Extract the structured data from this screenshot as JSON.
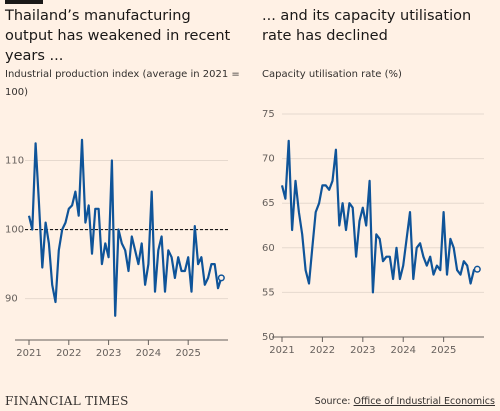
{
  "chart_data": [
    {
      "type": "line",
      "title": "Thailand’s manufacturing output has weakened in recent years ...",
      "subtitle": "Industrial production index (average in 2021 = 100)",
      "x": [
        2021,
        2021.083,
        2021.167,
        2021.25,
        2021.333,
        2021.417,
        2021.5,
        2021.583,
        2021.667,
        2021.75,
        2021.833,
        2021.917,
        2022,
        2022.083,
        2022.167,
        2022.25,
        2022.333,
        2022.417,
        2022.5,
        2022.583,
        2022.667,
        2022.75,
        2022.833,
        2022.917,
        2023,
        2023.083,
        2023.167,
        2023.25,
        2023.333,
        2023.417,
        2023.5,
        2023.583,
        2023.667,
        2023.75,
        2023.833,
        2023.917,
        2024,
        2024.083,
        2024.167,
        2024.25,
        2024.333,
        2024.417,
        2024.5,
        2024.583,
        2024.667,
        2024.75,
        2024.833,
        2024.917,
        2025,
        2025.083,
        2025.167,
        2025.25,
        2025.333,
        2025.417,
        2025.5,
        2025.583,
        2025.667,
        2025.75,
        2025.833
      ],
      "values": [
        102,
        100,
        112.5,
        104,
        94.5,
        101,
        98,
        92,
        89.5,
        97,
        100,
        101,
        103,
        103.5,
        105.5,
        102,
        113,
        101,
        103.5,
        96.5,
        103,
        103,
        95,
        98,
        96,
        110,
        87.5,
        100,
        98,
        97,
        94,
        99,
        97,
        95,
        98,
        92,
        95,
        105.5,
        91,
        97,
        99,
        91,
        97,
        96,
        93,
        96,
        94,
        94,
        96,
        91,
        100.5,
        95,
        96,
        92,
        93,
        95,
        95,
        91.5,
        93
      ],
      "color": "#0f5499",
      "xlim": [
        2021,
        2025.9
      ],
      "xticks": [
        2021,
        2022,
        2023,
        2024,
        2025
      ],
      "ylim": [
        84,
        115
      ],
      "yticks": [
        90,
        100,
        110
      ],
      "reference_line": 100,
      "grid": true
    },
    {
      "type": "line",
      "title": "... and its capacity utilisation rate has declined",
      "subtitle": "Capacity utilisation rate (%)",
      "x": [
        2021,
        2021.083,
        2021.167,
        2021.25,
        2021.333,
        2021.417,
        2021.5,
        2021.583,
        2021.667,
        2021.75,
        2021.833,
        2021.917,
        2022,
        2022.083,
        2022.167,
        2022.25,
        2022.333,
        2022.417,
        2022.5,
        2022.583,
        2022.667,
        2022.75,
        2022.833,
        2022.917,
        2023,
        2023.083,
        2023.167,
        2023.25,
        2023.333,
        2023.417,
        2023.5,
        2023.583,
        2023.667,
        2023.75,
        2023.833,
        2023.917,
        2024,
        2024.083,
        2024.167,
        2024.25,
        2024.333,
        2024.417,
        2024.5,
        2024.583,
        2024.667,
        2024.75,
        2024.833,
        2024.917,
        2025,
        2025.083,
        2025.167,
        2025.25,
        2025.333,
        2025.417,
        2025.5,
        2025.583,
        2025.667,
        2025.75,
        2025.833
      ],
      "values": [
        67,
        65.5,
        72,
        62,
        67.5,
        64,
        61.5,
        57.5,
        56,
        60,
        64,
        65,
        67,
        67,
        66.5,
        67.5,
        71,
        62.5,
        65,
        62,
        65,
        64.5,
        59,
        63,
        64.5,
        62.5,
        67.5,
        55,
        61.5,
        61,
        58.5,
        59,
        59,
        56.5,
        60,
        56.5,
        58,
        61,
        64,
        56.5,
        60,
        60.5,
        59,
        58,
        59,
        57,
        58,
        57.5,
        64,
        57,
        61,
        60,
        57.5,
        57,
        58.5,
        58,
        56,
        57.5,
        57.6
      ],
      "color": "#0f5499",
      "xlim": [
        2021,
        2025.9
      ],
      "xticks": [
        2021,
        2022,
        2023,
        2024,
        2025
      ],
      "ylim": [
        50,
        75
      ],
      "yticks": [
        50,
        55,
        60,
        65,
        70,
        75
      ],
      "grid": true
    }
  ],
  "footer": {
    "brand": "FINANCIAL TIMES",
    "source_label": "Source:",
    "source": "Office of Industrial Economics"
  }
}
